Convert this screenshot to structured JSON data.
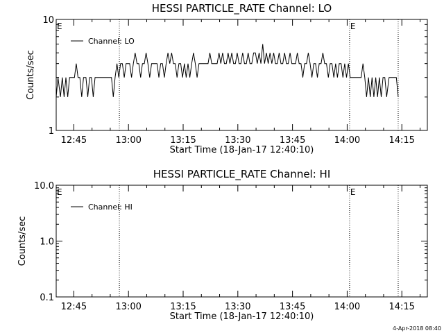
{
  "chart_data": [
    {
      "type": "line",
      "title": "HESSI PARTICLE_RATE Channel: LO",
      "xlabel": "Start Time (18-Jan-17 12:40:10)",
      "ylabel": "Counts/sec",
      "yscale": "log",
      "xlim": [
        "12:40:10",
        "14:22:00"
      ],
      "ylim": [
        1,
        10
      ],
      "x_tick_labels": [
        "12:45",
        "13:00",
        "13:15",
        "13:30",
        "13:45",
        "14:00",
        "14:15"
      ],
      "y_tick_labels": [
        "1",
        "10"
      ],
      "legend": {
        "position": "top-left",
        "entries": [
          "Channel: LO"
        ]
      },
      "vertical_markers": [
        {
          "x": "12:40:10",
          "label": "E"
        },
        {
          "x": "12:57:30",
          "label": ""
        },
        {
          "x": "14:00:40",
          "label": "E"
        },
        {
          "x": "14:14:00",
          "label": ""
        }
      ],
      "series": [
        {
          "name": "Channel: LO",
          "points": [
            [
              "12:40:10",
              2
            ],
            [
              "12:40:40",
              3
            ],
            [
              "12:41:20",
              2
            ],
            [
              "12:41:50",
              3
            ],
            [
              "12:42:20",
              2
            ],
            [
              "12:42:50",
              3
            ],
            [
              "12:43:20",
              2
            ],
            [
              "12:43:50",
              3
            ],
            [
              "12:44:30",
              3
            ],
            [
              "12:45:10",
              3
            ],
            [
              "12:45:40",
              4
            ],
            [
              "12:46:10",
              3
            ],
            [
              "12:46:40",
              3
            ],
            [
              "12:47:10",
              2
            ],
            [
              "12:47:40",
              3
            ],
            [
              "12:48:20",
              3
            ],
            [
              "12:48:50",
              2
            ],
            [
              "12:49:20",
              3
            ],
            [
              "12:49:50",
              3
            ],
            [
              "12:50:20",
              2
            ],
            [
              "12:50:50",
              3
            ],
            [
              "12:51:40",
              3
            ],
            [
              "12:52:20",
              3
            ],
            [
              "12:53:10",
              3
            ],
            [
              "12:54:00",
              3
            ],
            [
              "12:54:40",
              3
            ],
            [
              "12:55:20",
              3
            ],
            [
              "12:55:50",
              2
            ],
            [
              "12:56:20",
              3
            ],
            [
              "12:56:50",
              4
            ],
            [
              "12:57:20",
              3
            ],
            [
              "12:57:50",
              4
            ],
            [
              "12:58:20",
              4
            ],
            [
              "12:58:50",
              3
            ],
            [
              "12:59:20",
              4
            ],
            [
              "12:59:50",
              4
            ],
            [
              "13:00:20",
              4
            ],
            [
              "13:00:50",
              3
            ],
            [
              "13:01:20",
              4
            ],
            [
              "13:01:50",
              5
            ],
            [
              "13:02:20",
              4
            ],
            [
              "13:02:50",
              4
            ],
            [
              "13:03:20",
              3
            ],
            [
              "13:03:50",
              4
            ],
            [
              "13:04:20",
              4
            ],
            [
              "13:04:50",
              5
            ],
            [
              "13:05:20",
              4
            ],
            [
              "13:05:50",
              3
            ],
            [
              "13:06:20",
              4
            ],
            [
              "13:06:50",
              4
            ],
            [
              "13:07:20",
              4
            ],
            [
              "13:07:50",
              4
            ],
            [
              "13:08:20",
              3
            ],
            [
              "13:08:50",
              4
            ],
            [
              "13:09:20",
              4
            ],
            [
              "13:09:50",
              3
            ],
            [
              "13:10:20",
              4
            ],
            [
              "13:10:50",
              5
            ],
            [
              "13:11:20",
              4
            ],
            [
              "13:11:50",
              5
            ],
            [
              "13:12:20",
              4
            ],
            [
              "13:12:50",
              4
            ],
            [
              "13:13:20",
              3
            ],
            [
              "13:13:50",
              4
            ],
            [
              "13:14:20",
              4
            ],
            [
              "13:14:50",
              3
            ],
            [
              "13:15:20",
              4
            ],
            [
              "13:15:50",
              3
            ],
            [
              "13:16:20",
              4
            ],
            [
              "13:16:50",
              3
            ],
            [
              "13:17:20",
              4
            ],
            [
              "13:17:50",
              5
            ],
            [
              "13:18:20",
              4
            ],
            [
              "13:18:50",
              3
            ],
            [
              "13:19:20",
              4
            ],
            [
              "13:19:50",
              4
            ],
            [
              "13:20:30",
              4
            ],
            [
              "13:21:10",
              4
            ],
            [
              "13:21:50",
              4
            ],
            [
              "13:22:20",
              5
            ],
            [
              "13:22:50",
              4
            ],
            [
              "13:23:20",
              4
            ],
            [
              "13:23:50",
              4
            ],
            [
              "13:24:20",
              4
            ],
            [
              "13:24:50",
              5
            ],
            [
              "13:25:20",
              4
            ],
            [
              "13:25:50",
              5
            ],
            [
              "13:26:20",
              4
            ],
            [
              "13:26:50",
              4
            ],
            [
              "13:27:20",
              5
            ],
            [
              "13:27:50",
              4
            ],
            [
              "13:28:20",
              5
            ],
            [
              "13:28:50",
              4
            ],
            [
              "13:29:20",
              4
            ],
            [
              "13:29:50",
              5
            ],
            [
              "13:30:20",
              4
            ],
            [
              "13:30:50",
              4
            ],
            [
              "13:31:20",
              5
            ],
            [
              "13:31:50",
              4
            ],
            [
              "13:32:20",
              4
            ],
            [
              "13:32:50",
              5
            ],
            [
              "13:33:20",
              4
            ],
            [
              "13:33:50",
              4
            ],
            [
              "13:34:20",
              5
            ],
            [
              "13:34:50",
              5
            ],
            [
              "13:35:20",
              4
            ],
            [
              "13:35:50",
              5
            ],
            [
              "13:36:20",
              4
            ],
            [
              "13:36:50",
              6
            ],
            [
              "13:37:20",
              4
            ],
            [
              "13:37:50",
              5
            ],
            [
              "13:38:20",
              4
            ],
            [
              "13:38:50",
              5
            ],
            [
              "13:39:20",
              4
            ],
            [
              "13:39:50",
              5
            ],
            [
              "13:40:20",
              4
            ],
            [
              "13:40:50",
              4
            ],
            [
              "13:41:20",
              5
            ],
            [
              "13:41:50",
              4
            ],
            [
              "13:42:20",
              4
            ],
            [
              "13:42:50",
              5
            ],
            [
              "13:43:20",
              4
            ],
            [
              "13:43:50",
              4
            ],
            [
              "13:44:20",
              5
            ],
            [
              "13:44:50",
              4
            ],
            [
              "13:45:20",
              4
            ],
            [
              "13:45:50",
              4
            ],
            [
              "13:46:20",
              5
            ],
            [
              "13:46:50",
              4
            ],
            [
              "13:47:20",
              4
            ],
            [
              "13:47:50",
              3
            ],
            [
              "13:48:20",
              4
            ],
            [
              "13:48:50",
              4
            ],
            [
              "13:49:20",
              5
            ],
            [
              "13:49:50",
              4
            ],
            [
              "13:50:20",
              3
            ],
            [
              "13:50:50",
              4
            ],
            [
              "13:51:20",
              4
            ],
            [
              "13:51:50",
              3
            ],
            [
              "13:52:20",
              4
            ],
            [
              "13:52:50",
              4
            ],
            [
              "13:53:20",
              5
            ],
            [
              "13:53:50",
              4
            ],
            [
              "13:54:20",
              4
            ],
            [
              "13:54:50",
              3
            ],
            [
              "13:55:20",
              4
            ],
            [
              "13:55:50",
              4
            ],
            [
              "13:56:20",
              3
            ],
            [
              "13:56:50",
              4
            ],
            [
              "13:57:20",
              3
            ],
            [
              "13:57:50",
              4
            ],
            [
              "13:58:20",
              4
            ],
            [
              "13:58:50",
              3
            ],
            [
              "13:59:20",
              4
            ],
            [
              "13:59:50",
              3
            ],
            [
              "14:00:20",
              4
            ],
            [
              "14:00:50",
              3
            ],
            [
              "14:01:20",
              3
            ],
            [
              "14:01:50",
              3
            ],
            [
              "14:02:30",
              3
            ],
            [
              "14:03:10",
              3
            ],
            [
              "14:03:50",
              3
            ],
            [
              "14:04:20",
              4
            ],
            [
              "14:04:50",
              3
            ],
            [
              "14:05:20",
              2
            ],
            [
              "14:05:50",
              3
            ],
            [
              "14:06:20",
              2
            ],
            [
              "14:06:50",
              3
            ],
            [
              "14:07:20",
              2
            ],
            [
              "14:07:50",
              3
            ],
            [
              "14:08:20",
              2
            ],
            [
              "14:08:50",
              3
            ],
            [
              "14:09:20",
              2
            ],
            [
              "14:09:50",
              3
            ],
            [
              "14:10:20",
              3
            ],
            [
              "14:10:50",
              2
            ],
            [
              "14:11:30",
              3
            ],
            [
              "14:12:10",
              3
            ],
            [
              "14:12:50",
              3
            ],
            [
              "14:13:30",
              3
            ],
            [
              "14:14:00",
              2
            ]
          ]
        }
      ]
    },
    {
      "type": "line",
      "title": "HESSI PARTICLE_RATE Channel: HI",
      "xlabel": "Start Time (18-Jan-17 12:40:10)",
      "ylabel": "Counts/sec",
      "yscale": "log",
      "xlim": [
        "12:40:10",
        "14:22:00"
      ],
      "ylim": [
        0.1,
        10.0
      ],
      "x_tick_labels": [
        "12:45",
        "13:00",
        "13:15",
        "13:30",
        "13:45",
        "14:00",
        "14:15"
      ],
      "y_tick_labels": [
        "0.1",
        "1.0",
        "10.0"
      ],
      "legend": {
        "position": "top-left",
        "entries": [
          "Channel: HI"
        ]
      },
      "vertical_markers": [
        {
          "x": "12:40:10",
          "label": "E"
        },
        {
          "x": "12:57:30",
          "label": ""
        },
        {
          "x": "14:00:40",
          "label": "E"
        },
        {
          "x": "14:14:00",
          "label": ""
        }
      ],
      "series": [
        {
          "name": "Channel: HI",
          "points": []
        }
      ]
    }
  ],
  "footer": {
    "timestamp": "4-Apr-2018 08:40"
  }
}
